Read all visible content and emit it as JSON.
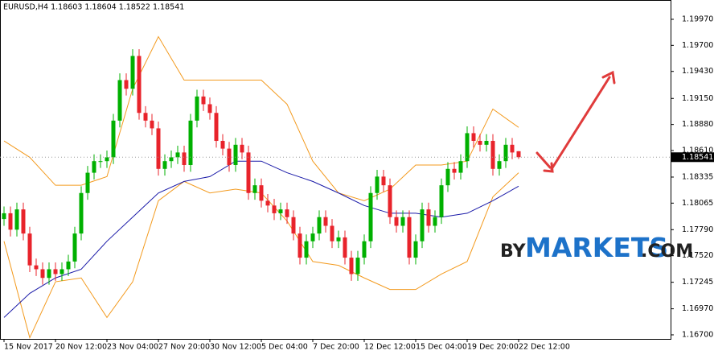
{
  "chart_data": {
    "type": "candlestick",
    "title": "EURUSD,H4  1.18603 1.18604 1.18522 1.18541",
    "categories": [
      "15 Nov 2017",
      null,
      null,
      null,
      null,
      null,
      null,
      null,
      "20 Nov 12:00",
      null,
      null,
      null,
      null,
      null,
      null,
      null,
      "23 Nov 04:00",
      null,
      null,
      null,
      null,
      null,
      null,
      null,
      "27 Nov 20:00",
      null,
      null,
      null,
      null,
      null,
      null,
      null,
      "30 Nov 12:00",
      null,
      null,
      null,
      null,
      null,
      null,
      null,
      "5 Dec 04:00",
      null,
      null,
      null,
      null,
      null,
      null,
      null,
      "7 Dec 20:00",
      null,
      null,
      null,
      null,
      null,
      null,
      null,
      "12 Dec 12:00",
      null,
      null,
      null,
      null,
      null,
      null,
      null,
      "15 Dec 04:00",
      null,
      null,
      null,
      null,
      null,
      null,
      null,
      "19 Dec 20:00",
      null,
      null,
      null,
      null,
      null,
      null,
      null,
      "22 Dec 12:00"
    ],
    "open": [
      1.179,
      1.1796,
      1.1779,
      1.18,
      1.1775,
      1.1742,
      1.1738,
      1.1729,
      1.1738,
      1.1733,
      1.1738,
      1.1746,
      1.1775,
      1.1817,
      1.1838,
      1.185,
      1.185,
      1.1854,
      1.1892,
      1.1934,
      1.1925,
      1.1959,
      1.19,
      1.1892,
      1.1884,
      1.1842,
      1.185,
      1.1854,
      1.1859,
      1.1846,
      1.1892,
      1.1917,
      1.1909,
      1.19,
      1.1871,
      1.1863,
      1.1846,
      1.1867,
      1.1859,
      1.1817,
      1.1825,
      1.1809,
      1.1804,
      1.1796,
      1.18,
      1.1792,
      1.1775,
      1.175,
      1.1767,
      1.1775,
      1.1792,
      1.1783,
      1.1767,
      1.1771,
      1.175,
      1.1733,
      1.175,
      1.1767,
      1.1817,
      1.1834,
      1.1825,
      1.1792,
      1.1783,
      1.1792,
      1.175,
      1.1767,
      1.18,
      1.1783,
      1.1792,
      1.1825,
      1.1842,
      1.1838,
      1.185,
      1.1879,
      1.1871,
      1.1867,
      1.1871,
      1.1842,
      1.185,
      1.1867,
      1.18603
    ],
    "high": [
      1.1803,
      1.1803,
      1.1807,
      1.1807,
      1.1782,
      1.1749,
      1.1745,
      1.1745,
      1.1745,
      1.1745,
      1.1753,
      1.1782,
      1.1824,
      1.1845,
      1.1857,
      1.1857,
      1.1861,
      1.1899,
      1.1941,
      1.1941,
      1.1966,
      1.1966,
      1.1907,
      1.1899,
      1.1891,
      1.1857,
      1.1861,
      1.1866,
      1.1866,
      1.1899,
      1.1924,
      1.1924,
      1.1916,
      1.1907,
      1.1878,
      1.187,
      1.1874,
      1.1874,
      1.1866,
      1.1832,
      1.1832,
      1.1816,
      1.1811,
      1.1807,
      1.1807,
      1.1799,
      1.1782,
      1.1774,
      1.1782,
      1.1799,
      1.1799,
      1.179,
      1.1778,
      1.1778,
      1.1757,
      1.1757,
      1.1774,
      1.1824,
      1.1841,
      1.1841,
      1.1832,
      1.1799,
      1.1799,
      1.1799,
      1.1774,
      1.1807,
      1.1807,
      1.1799,
      1.1832,
      1.1849,
      1.1849,
      1.1857,
      1.1886,
      1.1886,
      1.1878,
      1.1878,
      1.1878,
      1.1857,
      1.1874,
      1.1874,
      1.18604
    ],
    "low": [
      1.1783,
      1.1772,
      1.1772,
      1.1768,
      1.1735,
      1.1731,
      1.1722,
      1.1722,
      1.1726,
      1.1726,
      1.1731,
      1.1739,
      1.1768,
      1.181,
      1.1831,
      1.1843,
      1.1843,
      1.1847,
      1.1885,
      1.1918,
      1.1918,
      1.1893,
      1.1885,
      1.1877,
      1.1835,
      1.1835,
      1.1843,
      1.1847,
      1.1839,
      1.1839,
      1.1885,
      1.1902,
      1.1893,
      1.1864,
      1.1856,
      1.1839,
      1.1839,
      1.1852,
      1.181,
      1.181,
      1.1802,
      1.1797,
      1.1789,
      1.1789,
      1.1785,
      1.1768,
      1.1743,
      1.1743,
      1.176,
      1.1768,
      1.1776,
      1.176,
      1.176,
      1.1743,
      1.1726,
      1.1726,
      1.1743,
      1.176,
      1.181,
      1.1818,
      1.1785,
      1.1776,
      1.1776,
      1.1743,
      1.1743,
      1.176,
      1.1776,
      1.1776,
      1.1785,
      1.1818,
      1.1831,
      1.1831,
      1.1843,
      1.1864,
      1.186,
      1.186,
      1.1835,
      1.1835,
      1.1843,
      1.1852,
      1.18522
    ],
    "close": [
      1.1796,
      1.1779,
      1.18,
      1.1775,
      1.1742,
      1.1738,
      1.1729,
      1.1738,
      1.1733,
      1.1738,
      1.1746,
      1.1775,
      1.1817,
      1.1838,
      1.185,
      1.185,
      1.1854,
      1.1892,
      1.1934,
      1.1925,
      1.1959,
      1.19,
      1.1892,
      1.1884,
      1.1842,
      1.185,
      1.1854,
      1.1859,
      1.1846,
      1.1892,
      1.1917,
      1.1909,
      1.19,
      1.1871,
      1.1863,
      1.1846,
      1.1867,
      1.1859,
      1.1817,
      1.1825,
      1.1809,
      1.1804,
      1.1796,
      1.18,
      1.1792,
      1.1775,
      1.175,
      1.1767,
      1.1775,
      1.1792,
      1.1783,
      1.1767,
      1.1771,
      1.175,
      1.1733,
      1.175,
      1.1767,
      1.1817,
      1.1834,
      1.1825,
      1.1792,
      1.1783,
      1.1792,
      1.175,
      1.1767,
      1.18,
      1.1783,
      1.1792,
      1.1825,
      1.1842,
      1.1838,
      1.185,
      1.1879,
      1.1871,
      1.1867,
      1.1871,
      1.1842,
      1.185,
      1.1867,
      1.1859,
      1.18541
    ],
    "up_color": "#00b000",
    "down_color": "#e8232b",
    "overlays": [
      {
        "color": "#f39a1e",
        "x": [
          0,
          4,
          8,
          12,
          16,
          20,
          24,
          28,
          32,
          36,
          40,
          44,
          48,
          52,
          56,
          60,
          64,
          68,
          72,
          76,
          80
        ],
        "values": [
          1.1871,
          1.1854,
          1.1825,
          1.1825,
          1.1834,
          1.1925,
          1.1979,
          1.1934,
          1.1934,
          1.1934,
          1.1934,
          1.1909,
          1.185,
          1.1817,
          1.1809,
          1.1821,
          1.1846,
          1.1846,
          1.185,
          1.1904,
          1.1885
        ]
      },
      {
        "color": "#f39a1e",
        "x": [
          0,
          4,
          8,
          12,
          16,
          20,
          24,
          28,
          32,
          36,
          40,
          44,
          48,
          52,
          56,
          60,
          64,
          68,
          72,
          76,
          80
        ],
        "values": [
          1.1767,
          1.1667,
          1.1725,
          1.1729,
          1.1688,
          1.1725,
          1.1809,
          1.1829,
          1.1817,
          1.1821,
          1.1817,
          1.1788,
          1.1746,
          1.1742,
          1.1729,
          1.1717,
          1.1717,
          1.1733,
          1.1746,
          1.1813,
          1.1838
        ]
      },
      {
        "color": "#1a1aa8",
        "x": [
          0,
          4,
          8,
          12,
          16,
          20,
          24,
          28,
          32,
          36,
          40,
          44,
          48,
          52,
          56,
          60,
          64,
          68,
          72,
          76,
          80
        ],
        "values": [
          1.1688,
          1.1713,
          1.1729,
          1.1738,
          1.1767,
          1.1792,
          1.1817,
          1.1829,
          1.1834,
          1.185,
          1.185,
          1.1838,
          1.1829,
          1.1817,
          1.1804,
          1.1796,
          1.1796,
          1.1792,
          1.1796,
          1.1809,
          1.1824
        ]
      }
    ],
    "ylim": [
      1.16658,
      1.2017
    ],
    "yticks": [
      {
        "value": 1.1997,
        "label": "1.19970"
      },
      {
        "value": 1.197,
        "label": "1.19700"
      },
      {
        "value": 1.1943,
        "label": "1.19430"
      },
      {
        "value": 1.1915,
        "label": "1.19150"
      },
      {
        "value": 1.1888,
        "label": "1.18880"
      },
      {
        "value": 1.1861,
        "label": "1.18610"
      },
      {
        "value": 1.18335,
        "label": "1.18335"
      },
      {
        "value": 1.18065,
        "label": "1.18065"
      },
      {
        "value": 1.1779,
        "label": "1.17790"
      },
      {
        "value": 1.1752,
        "label": "1.17520"
      },
      {
        "value": 1.17245,
        "label": "1.17245"
      },
      {
        "value": 1.1697,
        "label": "1.16970"
      },
      {
        "value": 1.167,
        "label": "1.16700"
      }
    ],
    "last_price": 1.18541
  },
  "watermark": {
    "prefix": "BY",
    "name": "MARKETS",
    "suffix": ".COM"
  }
}
